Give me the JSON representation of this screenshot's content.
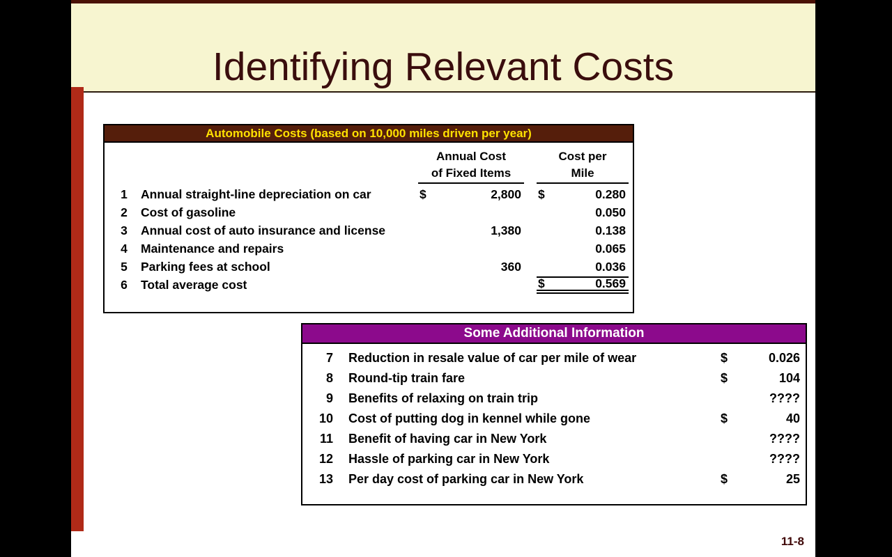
{
  "slide": {
    "title": "Identifying Relevant Costs",
    "page_number": "11-8"
  },
  "colors": {
    "slide_bg": "#FFFFFF",
    "band_bg": "#F7F5D0",
    "band_top_line": "#4A1105",
    "title_text": "#3A0D0D",
    "side_bars": "#000000",
    "red_strip": "#B02A18",
    "auto_header_bg": "#551E0B",
    "auto_header_text": "#FFE100",
    "info_header_bg": "#8C0A8C",
    "info_header_text": "#FFFFFF",
    "page_number_text": "#3F0808",
    "table_text": "#000000"
  },
  "auto_table": {
    "header": "Automobile Costs (based on 10,000 miles driven per year)",
    "columns": {
      "annual_cost_line1": "Annual Cost",
      "annual_cost_line2": "of Fixed Items",
      "cost_per_mile_line1": "Cost per",
      "cost_per_mile_line2": "Mile"
    },
    "rows": [
      {
        "num": "1",
        "desc": "Annual straight-line depreciation on car",
        "annual_dollar": "$",
        "annual": "2,800",
        "mile_dollar": "$",
        "mile": "0.280",
        "total": false
      },
      {
        "num": "2",
        "desc": "Cost of gasoline",
        "annual_dollar": "",
        "annual": "",
        "mile_dollar": "",
        "mile": "0.050",
        "total": false
      },
      {
        "num": "3",
        "desc": "Annual cost of auto insurance and license",
        "annual_dollar": "",
        "annual": "1,380",
        "mile_dollar": "",
        "mile": "0.138",
        "total": false
      },
      {
        "num": "4",
        "desc": "Maintenance and repairs",
        "annual_dollar": "",
        "annual": "",
        "mile_dollar": "",
        "mile": "0.065",
        "total": false
      },
      {
        "num": "5",
        "desc": "Parking fees at school",
        "annual_dollar": "",
        "annual": "360",
        "mile_dollar": "",
        "mile": "0.036",
        "total": false
      },
      {
        "num": "6",
        "desc": "Total average cost",
        "annual_dollar": "",
        "annual": "",
        "mile_dollar": "$",
        "mile": "0.569",
        "total": true
      }
    ]
  },
  "info_table": {
    "header": "Some Additional Information",
    "rows": [
      {
        "num": "7",
        "desc": "Reduction in resale value of car per mile of wear",
        "dollar": "$",
        "value": "0.026"
      },
      {
        "num": "8",
        "desc": "Round-tip train fare",
        "dollar": "$",
        "value": "104"
      },
      {
        "num": "9",
        "desc": "Benefits of relaxing on train trip",
        "dollar": "",
        "value": "????"
      },
      {
        "num": "10",
        "desc": "Cost of putting dog in kennel while gone",
        "dollar": "$",
        "value": "40"
      },
      {
        "num": "11",
        "desc": "Benefit of having car in New York",
        "dollar": "",
        "value": "????"
      },
      {
        "num": "12",
        "desc": "Hassle of parking car in New York",
        "dollar": "",
        "value": "????"
      },
      {
        "num": "13",
        "desc": "Per day cost of parking car in New York",
        "dollar": "$",
        "value": "25"
      }
    ]
  }
}
